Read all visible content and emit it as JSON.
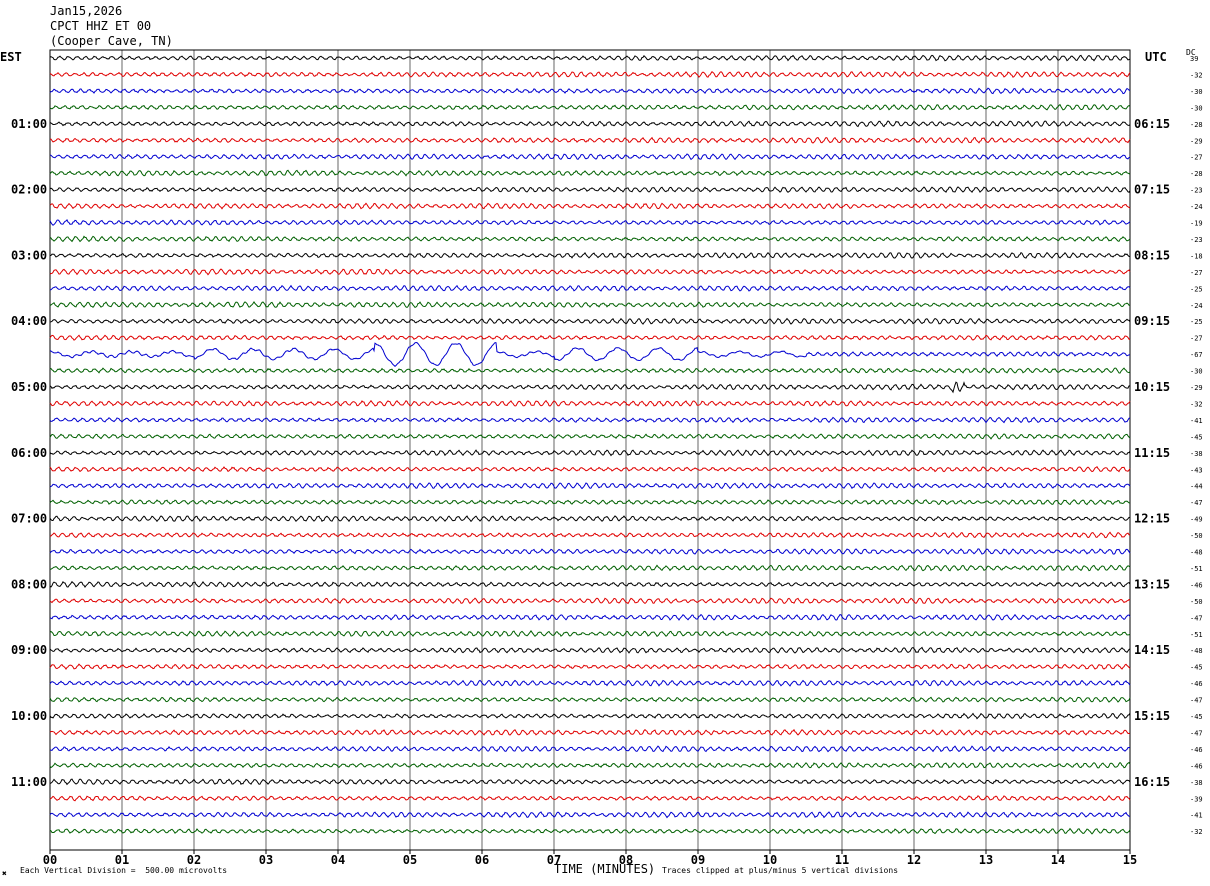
{
  "header": {
    "date": "Jan15,2026",
    "station": "CPCT HHZ ET 00",
    "location": "(Cooper Cave, TN)"
  },
  "left_timezone": "EST",
  "right_timezone": "UTC",
  "dc_label": "DC",
  "footer": {
    "scale_note": "Each Vertical Division =  500.00 microvolts",
    "xlabel": "TIME (MINUTES)",
    "clip_note": "Traces clipped at plus/minus 5 vertical divisions",
    "mark": "✖"
  },
  "chart_data": {
    "type": "helicorder",
    "x_ticks": [
      "00",
      "01",
      "02",
      "03",
      "04",
      "05",
      "06",
      "07",
      "08",
      "09",
      "10",
      "11",
      "12",
      "13",
      "14",
      "15"
    ],
    "xlim": [
      0,
      15
    ],
    "minutes_per_line": 15,
    "line_colors": [
      "#000000",
      "#e00000",
      "#0000d0",
      "#006000"
    ],
    "left_hour_labels": [
      "01:00",
      "02:00",
      "03:00",
      "04:00",
      "05:00",
      "06:00",
      "07:00",
      "08:00",
      "09:00",
      "10:00",
      "11:00"
    ],
    "right_hour_labels": [
      "06:15",
      "07:15",
      "08:15",
      "09:15",
      "10:15",
      "11:15",
      "12:15",
      "13:15",
      "14:15",
      "15:15",
      "16:15"
    ],
    "dc_offsets": [
      39,
      -32,
      -30,
      -30,
      -28,
      -29,
      -27,
      -28,
      -23,
      -24,
      -19,
      -23,
      -18,
      -27,
      -25,
      -24,
      -25,
      -27,
      -67,
      -30,
      -29,
      -32,
      -41,
      -45,
      -38,
      -43,
      -44,
      -47,
      -49,
      -50,
      -48,
      -51,
      -46,
      -50,
      -47,
      -51,
      -48,
      -45,
      -46,
      -47,
      -45,
      -47,
      -46,
      -46,
      -38,
      -39,
      -41,
      -32
    ],
    "events": [
      {
        "line": 18,
        "start_min": 0.0,
        "end_min": 10.5,
        "note": "long-period oscillation"
      },
      {
        "line": 20,
        "start_min": 12.5,
        "end_min": 12.7,
        "note": "local burst"
      }
    ]
  }
}
